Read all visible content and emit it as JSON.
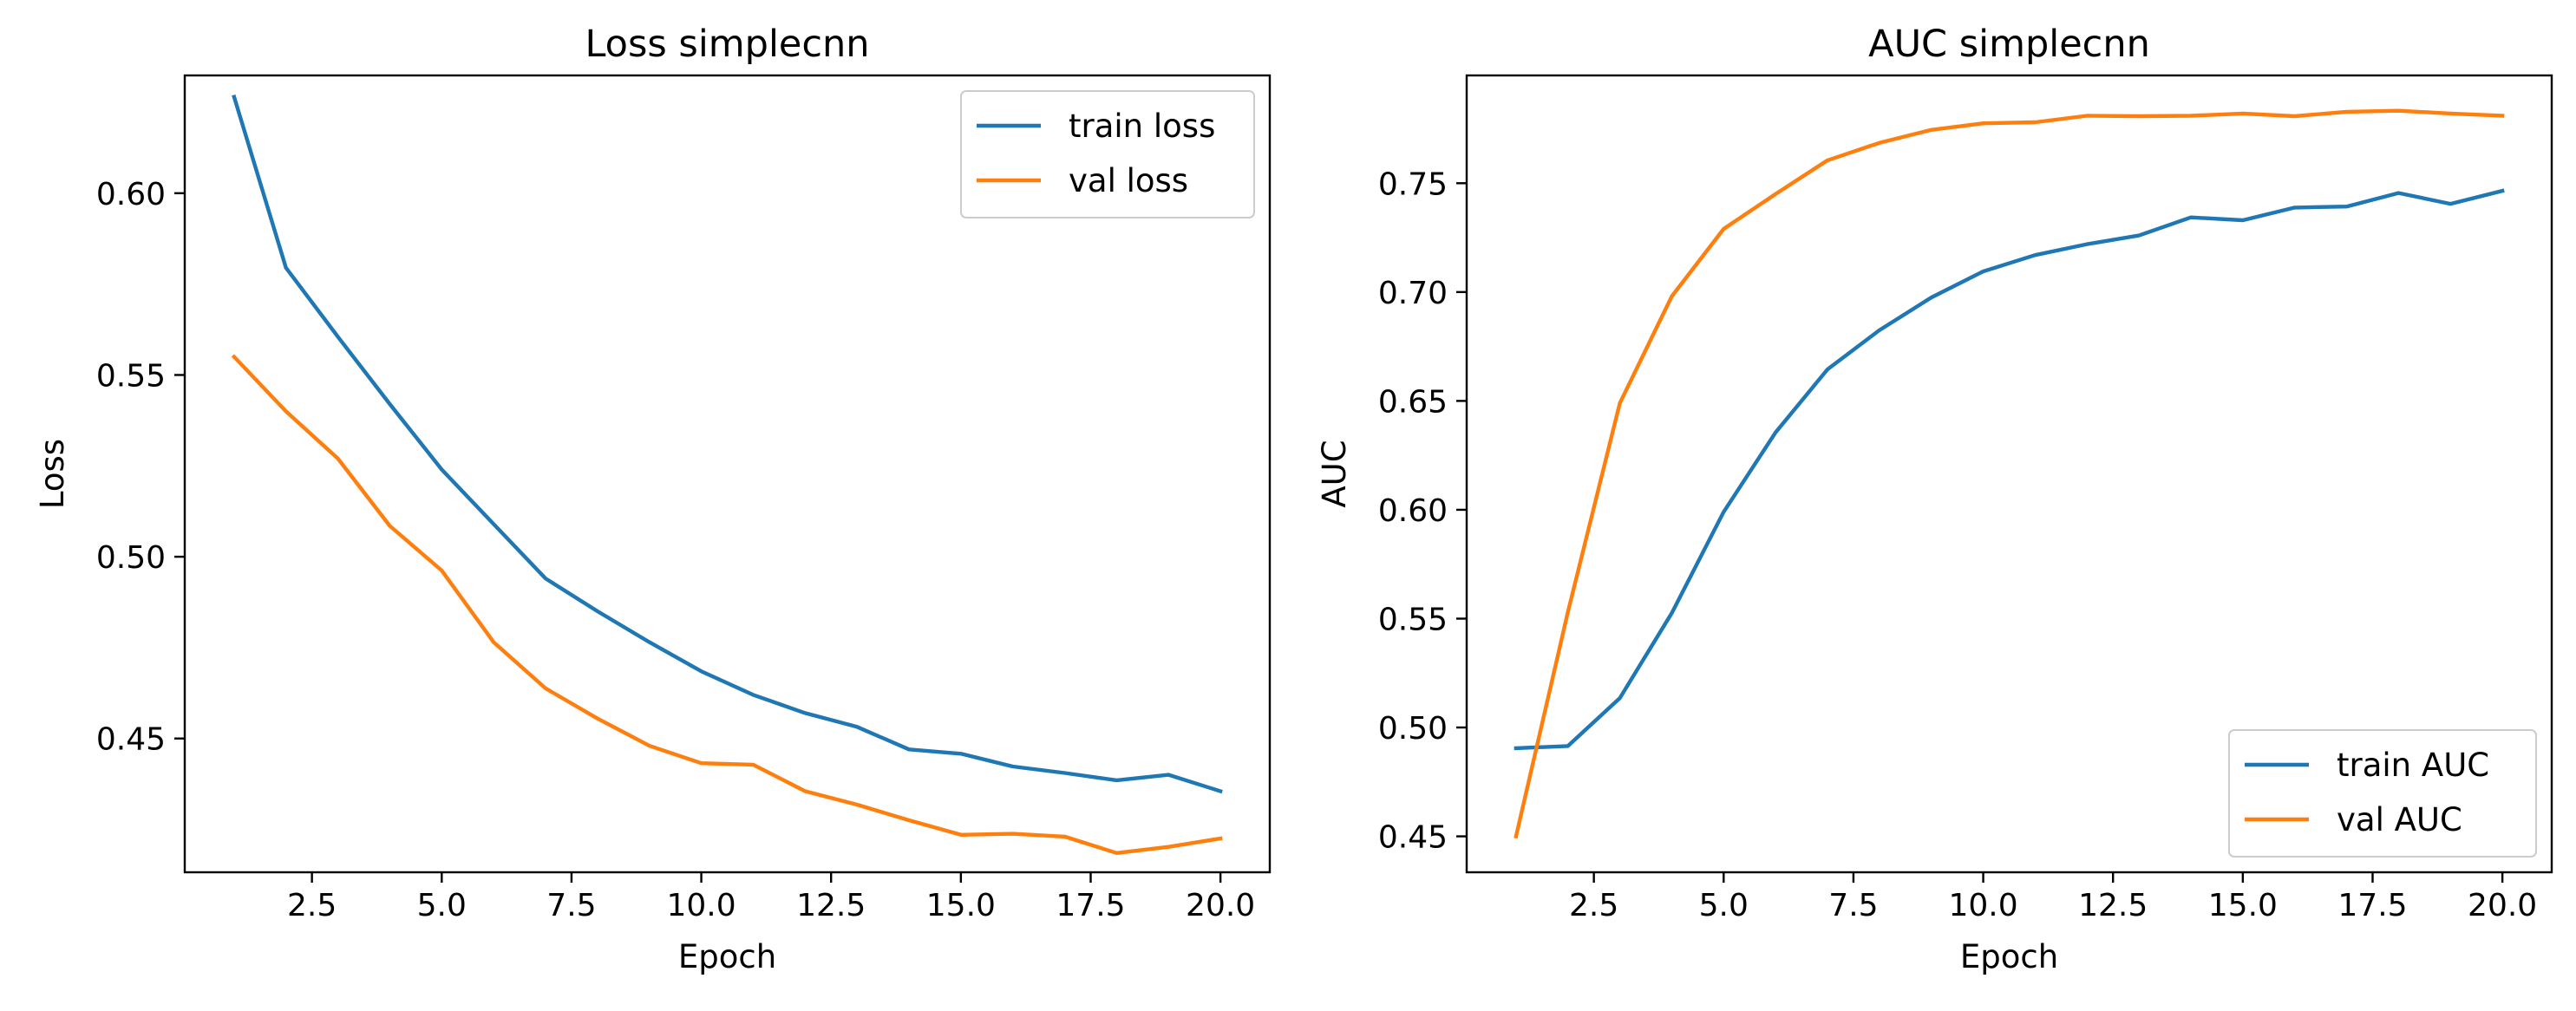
{
  "colors": {
    "train": "#1f77b4",
    "val": "#ff7f0e"
  },
  "chart_data": [
    {
      "type": "line",
      "title": "Loss simplecnn",
      "xlabel": "Epoch",
      "ylabel": "Loss",
      "xlim": [
        0.05,
        20.95
      ],
      "ylim": [
        0.4132,
        0.6324
      ],
      "xticks": [
        2.5,
        5.0,
        7.5,
        10.0,
        12.5,
        15.0,
        17.5,
        20.0
      ],
      "xtick_labels": [
        "2.5",
        "5.0",
        "7.5",
        "10.0",
        "12.5",
        "15.0",
        "17.5",
        "20.0"
      ],
      "yticks": [
        0.45,
        0.5,
        0.55,
        0.6
      ],
      "ytick_labels": [
        "0.45",
        "0.50",
        "0.55",
        "0.60"
      ],
      "legend_position": "upper right",
      "grid": false,
      "x": [
        1,
        2,
        3,
        4,
        5,
        6,
        7,
        8,
        9,
        10,
        11,
        12,
        13,
        14,
        15,
        16,
        17,
        18,
        19,
        20
      ],
      "series": [
        {
          "name": "train loss",
          "color": "#1f77b4",
          "values": [
            0.6265,
            0.5795,
            0.5605,
            0.542,
            0.524,
            0.509,
            0.494,
            0.485,
            0.4765,
            0.4685,
            0.462,
            0.457,
            0.4532,
            0.447,
            0.4458,
            0.4423,
            0.4405,
            0.4385,
            0.44,
            0.4355
          ]
        },
        {
          "name": "val loss",
          "color": "#ff7f0e",
          "values": [
            0.555,
            0.54,
            0.527,
            0.5085,
            0.4962,
            0.4765,
            0.4638,
            0.4555,
            0.448,
            0.4432,
            0.4428,
            0.4355,
            0.4318,
            0.4275,
            0.4235,
            0.4238,
            0.423,
            0.4185,
            0.4202,
            0.4225
          ]
        }
      ]
    },
    {
      "type": "line",
      "title": "AUC simplecnn",
      "xlabel": "Epoch",
      "ylabel": "AUC",
      "xlim": [
        0.05,
        20.95
      ],
      "ylim": [
        0.4335,
        0.7995
      ],
      "xticks": [
        2.5,
        5.0,
        7.5,
        10.0,
        12.5,
        15.0,
        17.5,
        20.0
      ],
      "xtick_labels": [
        "2.5",
        "5.0",
        "7.5",
        "10.0",
        "12.5",
        "15.0",
        "17.5",
        "20.0"
      ],
      "yticks": [
        0.45,
        0.5,
        0.55,
        0.6,
        0.65,
        0.7,
        0.75
      ],
      "ytick_labels": [
        "0.45",
        "0.50",
        "0.55",
        "0.60",
        "0.65",
        "0.70",
        "0.75"
      ],
      "legend_position": "lower right",
      "grid": false,
      "x": [
        1,
        2,
        3,
        4,
        5,
        6,
        7,
        8,
        9,
        10,
        11,
        12,
        13,
        14,
        15,
        16,
        17,
        18,
        19,
        20
      ],
      "series": [
        {
          "name": "train AUC",
          "color": "#1f77b4",
          "values": [
            0.4905,
            0.4915,
            0.5135,
            0.5525,
            0.599,
            0.6355,
            0.6645,
            0.6825,
            0.6975,
            0.7095,
            0.717,
            0.722,
            0.726,
            0.7343,
            0.733,
            0.7388,
            0.7393,
            0.7455,
            0.7405,
            0.7465
          ]
        },
        {
          "name": "val AUC",
          "color": "#ff7f0e",
          "values": [
            0.45,
            0.553,
            0.649,
            0.698,
            0.729,
            0.745,
            0.7605,
            0.7685,
            0.7745,
            0.7775,
            0.778,
            0.781,
            0.7808,
            0.781,
            0.782,
            0.7808,
            0.7828,
            0.7833,
            0.782,
            0.781
          ]
        }
      ]
    }
  ]
}
